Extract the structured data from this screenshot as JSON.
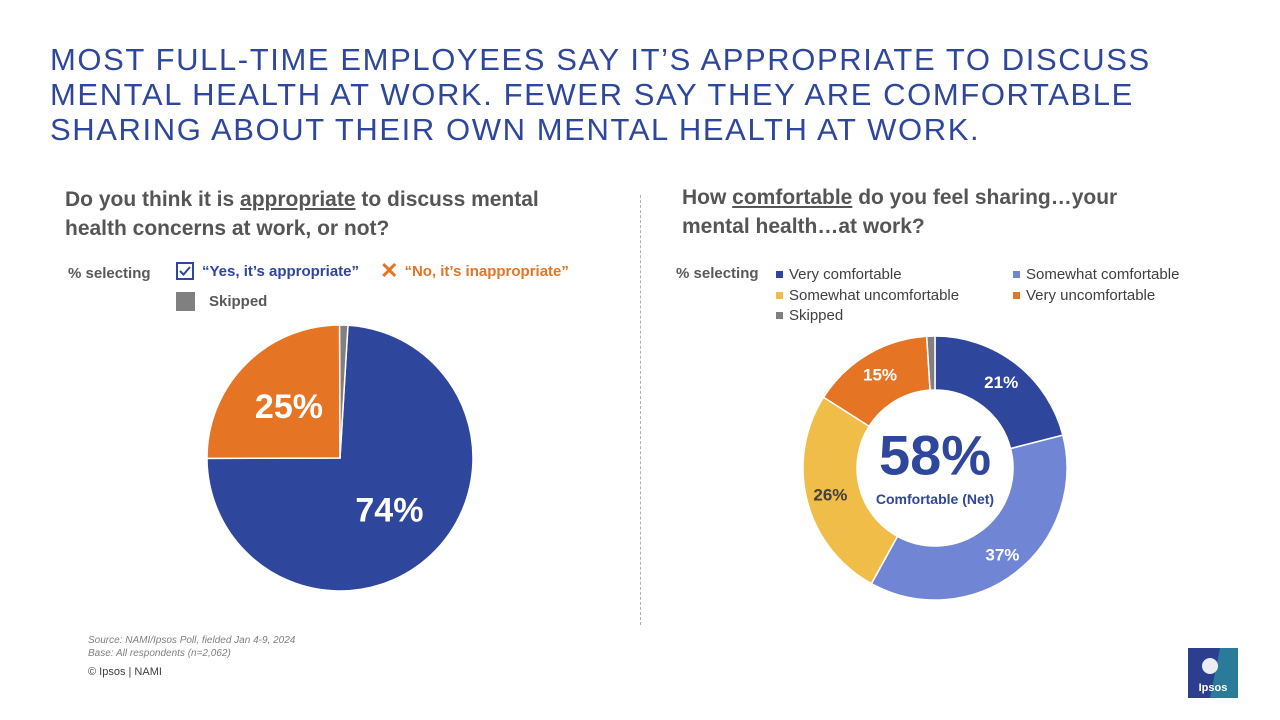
{
  "title": {
    "lines": [
      "MOST FULL-TIME EMPLOYEES SAY IT’S APPROPRIATE TO DISCUSS",
      "MENTAL HEALTH AT WORK. FEWER SAY THEY ARE COMFORTABLE",
      "SHARING ABOUT THEIR OWN MENTAL HEALTH AT WORK."
    ]
  },
  "left": {
    "question_pre": "Do you think it is ",
    "question_em": "appropriate",
    "question_post1": " to discuss mental",
    "question_post2": "health concerns at work, or not?",
    "pct_label": "% selecting",
    "legend_yes": "“Yes, it’s appropriate”",
    "legend_no": "“No, it’s inappropriate”",
    "legend_skip": "Skipped"
  },
  "right": {
    "question_pre": "How ",
    "question_em": "comfortable",
    "question_post1": " do you feel sharing…your",
    "question_post2": "mental health…at work?",
    "pct_label": "% selecting",
    "legend": [
      "Very comfortable",
      "Somewhat comfortable",
      "Somewhat uncomfortable",
      "Very uncomfortable",
      "Skipped"
    ],
    "center_value": "58%",
    "center_label": "Comfortable (Net)"
  },
  "colors": {
    "navy": "#2e469c",
    "orange": "#e57424",
    "gray": "#808080",
    "periwinkle": "#7086d4",
    "yellow": "#f0bd48"
  },
  "chart_data": [
    {
      "type": "pie",
      "categories": [
        "Yes, it’s appropriate",
        "No, it’s inappropriate",
        "Skipped"
      ],
      "values": [
        74,
        25,
        1
      ],
      "labels": [
        "74%",
        "25%",
        ""
      ],
      "colors": [
        "#2e469c",
        "#e57424",
        "#808080"
      ]
    },
    {
      "type": "pie",
      "donut": true,
      "categories": [
        "Very comfortable",
        "Somewhat comfortable",
        "Somewhat uncomfortable",
        "Very uncomfortable",
        "Skipped"
      ],
      "values": [
        21,
        37,
        26,
        15,
        1
      ],
      "labels": [
        "21%",
        "37%",
        "26%",
        "15%",
        ""
      ],
      "colors": [
        "#2e469c",
        "#7086d4",
        "#f0bd48",
        "#e57424",
        "#808080"
      ]
    }
  ],
  "footer": {
    "source": "Source: NAMI/Ipsos Poll, fielded Jan 4-9, 2024",
    "base": "Base: All respondents (n=2,062)",
    "copyright": "© Ipsos | NAMI",
    "logo_text": "Ipsos"
  }
}
